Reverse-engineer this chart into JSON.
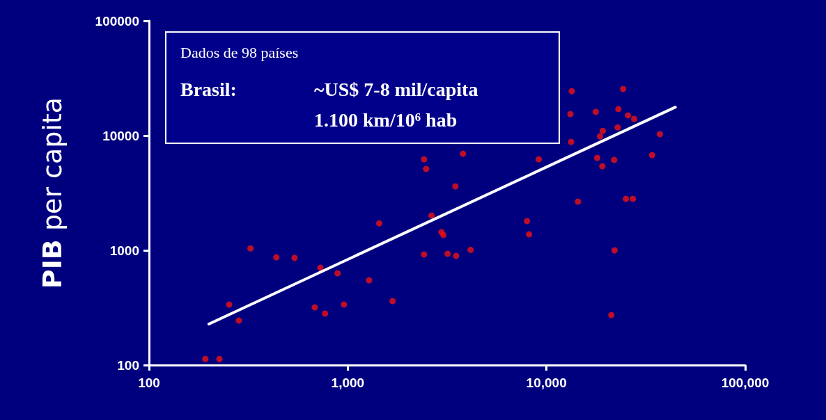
{
  "chart_data": {
    "type": "scatter",
    "ylabel": "PIB per capita",
    "log": "xy",
    "grid": false,
    "marker": "circle",
    "xlim": [
      100,
      100000
    ],
    "xticks": [
      100,
      {
        "value": 1000,
        "label": "1,000"
      },
      {
        "value": 10000,
        "label": "10,000"
      },
      {
        "value": 100000,
        "label": "100,000"
      }
    ],
    "ylim": [
      100,
      100000
    ],
    "yticks": [
      100,
      1000,
      10000,
      100000
    ],
    "annotations": [
      "Dados de 98 países",
      "Brasil:",
      "~US$ 7-8 mil/capita",
      "1.100 km/10⁶ hab"
    ],
    "series": [
      {
        "color": "#ee1111",
        "x": [
          192,
          226,
          253,
          283,
          324,
          437,
          540,
          728,
          682,
          769,
          889,
          956,
          1280,
          1440,
          1680,
          2420,
          2480,
          2640,
          2420,
          2960,
          3030,
          3180,
          3510,
          3480,
          3800,
          4150,
          7980,
          8170,
          9140,
          13400,
          24300,
          13200,
          17700,
          23000,
          25700,
          27600,
          22800,
          19200,
          18600,
          37200,
          13300,
          18000,
          19100,
          21900,
          34000,
          14400,
          25100,
          27200,
          22000,
          21200
        ],
        "values": [
          113,
          113,
          337,
          244,
          1040,
          870,
          860,
          705,
          318,
          281,
          631,
          337,
          548,
          1720,
          361,
          6220,
          5120,
          2010,
          920,
          1440,
          1360,
          933,
          895,
          3610,
          6950,
          1010,
          1800,
          1380,
          6220,
          24400,
          25500,
          15400,
          16100,
          17000,
          15000,
          14000,
          11800,
          11000,
          9860,
          10300,
          8810,
          6400,
          5410,
          6140,
          6760,
          2660,
          2810,
          2810,
          1000,
          273
        ]
      },
      {
        "type": "line",
        "color": "#ffffff",
        "marker": "none",
        "x": [
          200,
          44500
        ],
        "values": [
          228,
          17700
        ]
      }
    ]
  }
}
